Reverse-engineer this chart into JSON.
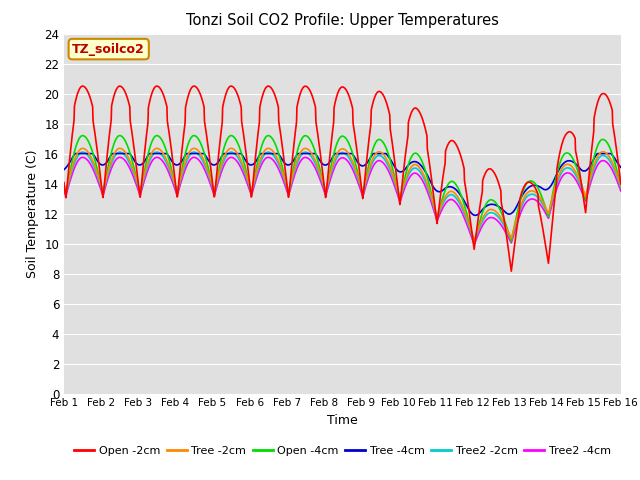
{
  "title": "Tonzi Soil CO2 Profile: Upper Temperatures",
  "xlabel": "Time",
  "ylabel": "Soil Temperature (C)",
  "watermark": "TZ_soilco2",
  "ylim": [
    0,
    24
  ],
  "xlim": [
    0,
    15
  ],
  "bg_color": "#e0e0e0",
  "grid_color": "white",
  "xtick_labels": [
    "Feb 1",
    "Feb 2",
    "Feb 3",
    "Feb 4",
    "Feb 5",
    "Feb 6",
    "Feb 7",
    "Feb 8",
    "Feb 9",
    "Feb 10",
    "Feb 11",
    "Feb 12",
    "Feb 13",
    "Feb 14",
    "Feb 15",
    "Feb 16"
  ],
  "series_colors": [
    "#ff0000",
    "#ff8800",
    "#00dd00",
    "#0000cc",
    "#00cccc",
    "#ff00ff"
  ],
  "legend_labels": [
    "Open -2cm",
    "Tree -2cm",
    "Open -4cm",
    "Tree -4cm",
    "Tree2 -2cm",
    "Tree2 -4cm"
  ],
  "lw": 1.2
}
